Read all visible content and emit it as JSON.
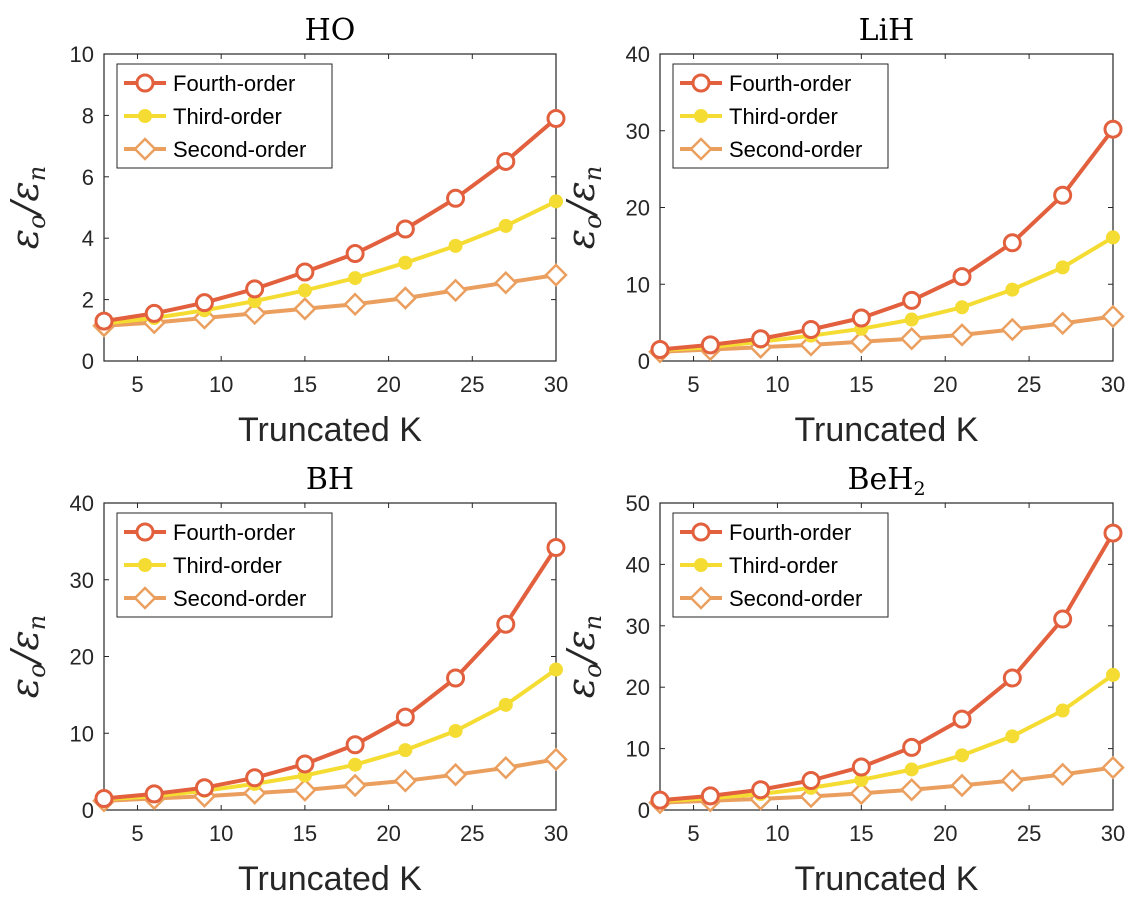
{
  "chart_data": [
    {
      "type": "line",
      "title": "HO",
      "title_sub": "",
      "xlabel": "Truncated K",
      "ylabel": "εo/εn",
      "x": [
        3,
        6,
        9,
        12,
        15,
        18,
        21,
        24,
        27,
        30
      ],
      "xlim": [
        3,
        30
      ],
      "ylim": [
        0,
        10
      ],
      "xticks": [
        5,
        10,
        15,
        20,
        25,
        30
      ],
      "yticks": [
        0,
        2,
        4,
        6,
        8,
        10
      ],
      "legend_position": "top-left",
      "series": [
        {
          "name": "Fourth-order",
          "color": "#e2603d",
          "marker": "circle",
          "values": [
            1.3,
            1.55,
            1.9,
            2.35,
            2.9,
            3.5,
            4.3,
            5.3,
            6.5,
            7.9
          ]
        },
        {
          "name": "Third-order",
          "color": "#f5dc32",
          "marker": "dot",
          "values": [
            1.22,
            1.4,
            1.65,
            1.95,
            2.3,
            2.7,
            3.2,
            3.75,
            4.4,
            5.2
          ]
        },
        {
          "name": "Second-order",
          "color": "#eb9f5f",
          "marker": "diamond",
          "values": [
            1.15,
            1.25,
            1.4,
            1.55,
            1.7,
            1.85,
            2.05,
            2.3,
            2.55,
            2.8
          ]
        }
      ]
    },
    {
      "type": "line",
      "title": "LiH",
      "title_sub": "",
      "xlabel": "Truncated K",
      "ylabel": "εo/εn",
      "x": [
        3,
        6,
        9,
        12,
        15,
        18,
        21,
        24,
        27,
        30
      ],
      "xlim": [
        3,
        30
      ],
      "ylim": [
        0,
        40
      ],
      "xticks": [
        5,
        10,
        15,
        20,
        25,
        30
      ],
      "yticks": [
        0,
        10,
        20,
        30,
        40
      ],
      "legend_position": "top-left",
      "series": [
        {
          "name": "Fourth-order",
          "color": "#e2603d",
          "marker": "circle",
          "values": [
            1.5,
            2.1,
            2.9,
            4.1,
            5.6,
            7.9,
            11.0,
            15.4,
            21.6,
            30.2
          ]
        },
        {
          "name": "Third-order",
          "color": "#f5dc32",
          "marker": "dot",
          "values": [
            1.4,
            1.8,
            2.5,
            3.3,
            4.2,
            5.4,
            7.0,
            9.3,
            12.2,
            16.1
          ]
        },
        {
          "name": "Second-order",
          "color": "#eb9f5f",
          "marker": "diamond",
          "values": [
            1.2,
            1.5,
            1.8,
            2.1,
            2.5,
            2.9,
            3.4,
            4.1,
            4.9,
            5.8
          ]
        }
      ]
    },
    {
      "type": "line",
      "title": "BH",
      "title_sub": "",
      "xlabel": "Truncated K",
      "ylabel": "εo/εn",
      "x": [
        3,
        6,
        9,
        12,
        15,
        18,
        21,
        24,
        27,
        30
      ],
      "xlim": [
        3,
        30
      ],
      "ylim": [
        0,
        40
      ],
      "xticks": [
        5,
        10,
        15,
        20,
        25,
        30
      ],
      "yticks": [
        0,
        10,
        20,
        30,
        40
      ],
      "legend_position": "top-left",
      "series": [
        {
          "name": "Fourth-order",
          "color": "#e2603d",
          "marker": "circle",
          "values": [
            1.5,
            2.1,
            2.9,
            4.2,
            6.0,
            8.5,
            12.1,
            17.2,
            24.2,
            34.2
          ]
        },
        {
          "name": "Third-order",
          "color": "#f5dc32",
          "marker": "dot",
          "values": [
            1.4,
            1.8,
            2.5,
            3.4,
            4.5,
            5.9,
            7.8,
            10.3,
            13.7,
            18.3
          ]
        },
        {
          "name": "Second-order",
          "color": "#eb9f5f",
          "marker": "diamond",
          "values": [
            1.2,
            1.5,
            1.8,
            2.2,
            2.6,
            3.2,
            3.8,
            4.6,
            5.5,
            6.6
          ]
        }
      ]
    },
    {
      "type": "line",
      "title": "BeH",
      "title_sub": "2",
      "xlabel": "Truncated K",
      "ylabel": "εo/εn",
      "x": [
        3,
        6,
        9,
        12,
        15,
        18,
        21,
        24,
        27,
        30
      ],
      "xlim": [
        3,
        30
      ],
      "ylim": [
        0,
        50
      ],
      "xticks": [
        5,
        10,
        15,
        20,
        25,
        30
      ],
      "yticks": [
        0,
        10,
        20,
        30,
        40,
        50
      ],
      "legend_position": "top-left",
      "series": [
        {
          "name": "Fourth-order",
          "color": "#e2603d",
          "marker": "circle",
          "values": [
            1.6,
            2.3,
            3.3,
            4.8,
            7.0,
            10.2,
            14.8,
            21.5,
            31.1,
            45.1
          ]
        },
        {
          "name": "Third-order",
          "color": "#f5dc32",
          "marker": "dot",
          "values": [
            1.4,
            1.9,
            2.6,
            3.6,
            4.9,
            6.6,
            8.9,
            12.0,
            16.2,
            22.0
          ]
        },
        {
          "name": "Second-order",
          "color": "#eb9f5f",
          "marker": "diamond",
          "values": [
            1.2,
            1.5,
            1.8,
            2.2,
            2.7,
            3.3,
            4.0,
            4.8,
            5.8,
            6.9
          ]
        }
      ]
    }
  ]
}
